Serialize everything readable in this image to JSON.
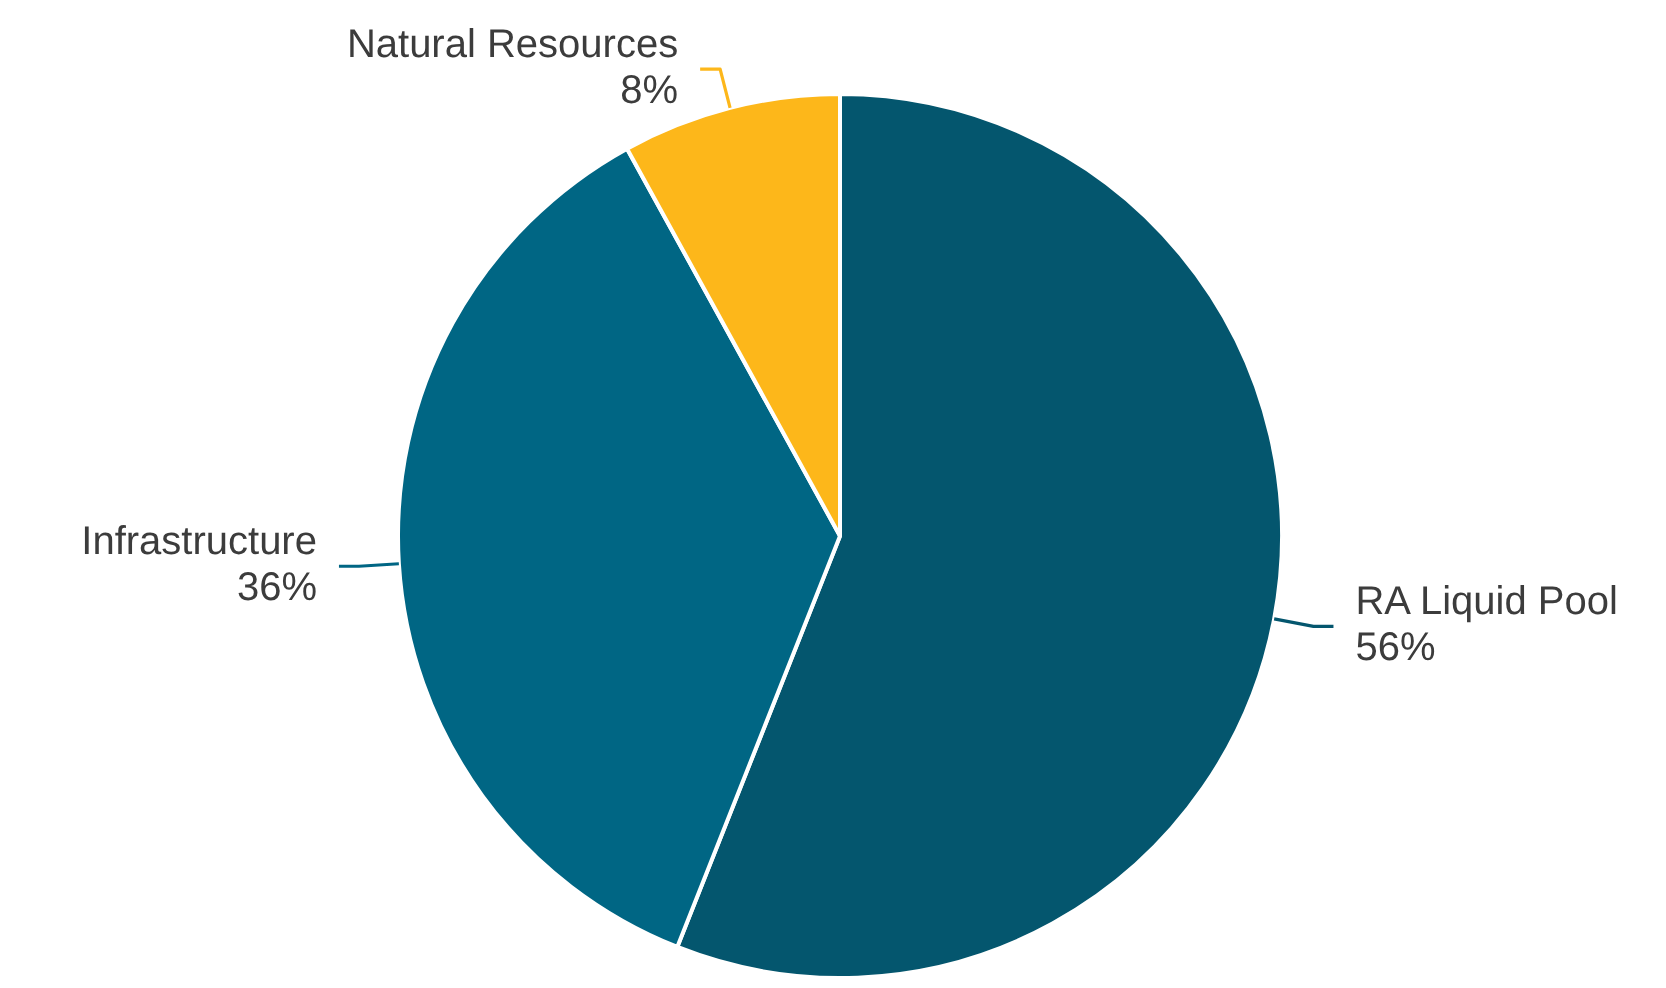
{
  "chart_data": {
    "type": "pie",
    "categories": [
      "RA Liquid Pool",
      "Infrastructure",
      "Natural Resources"
    ],
    "values": [
      56,
      36,
      8
    ],
    "colors": [
      "#04566e",
      "#006684",
      "#fdb71a"
    ],
    "value_labels": [
      "56%",
      "36%",
      "8%"
    ],
    "legend": false
  }
}
